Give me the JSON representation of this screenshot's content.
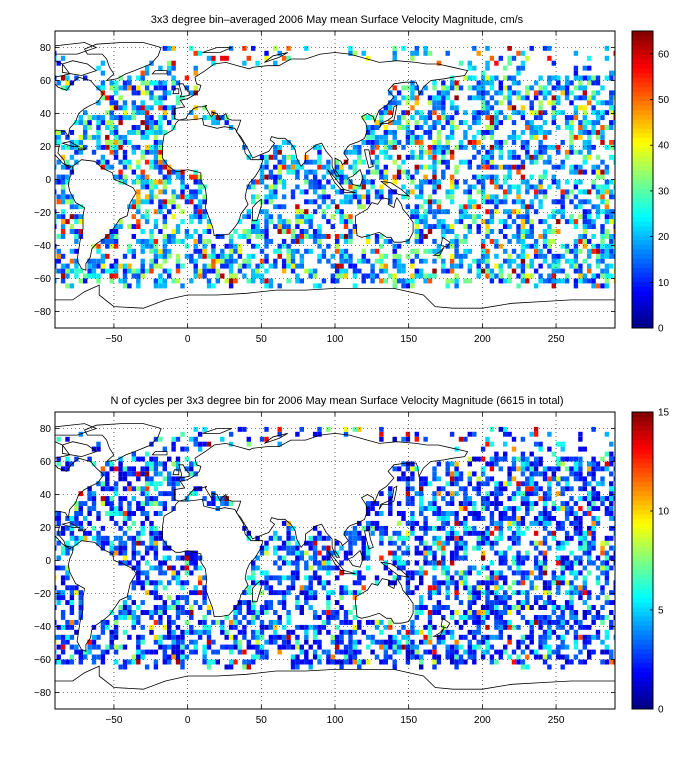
{
  "chart_data": [
    {
      "type": "heatmap",
      "title": "3x3 degree bin–averaged 2006 May mean Surface Velocity Magnitude, cm/s",
      "xlabel": "",
      "ylabel": "",
      "xlim": [
        -90,
        290
      ],
      "ylim": [
        -90,
        90
      ],
      "x_ticks": [
        -50,
        0,
        50,
        100,
        150,
        200,
        250
      ],
      "y_ticks": [
        80,
        60,
        40,
        20,
        0,
        -20,
        -40,
        -60,
        -80
      ],
      "grid": true,
      "bin_size_deg": 3,
      "colormap": "jet",
      "colorbar": {
        "range": [
          0,
          65
        ],
        "ticks": [
          0,
          10,
          20,
          30,
          40,
          50,
          60
        ],
        "placement": "right"
      },
      "typical_value": 18,
      "seed": 11
    },
    {
      "type": "heatmap",
      "title": "N of cycles per 3x3 degree bin for 2006 May mean Surface Velocity Magnitude (6615 in total)",
      "xlabel": "",
      "ylabel": "",
      "xlim": [
        -90,
        290
      ],
      "ylim": [
        -90,
        90
      ],
      "x_ticks": [
        -50,
        0,
        50,
        100,
        150,
        200,
        250
      ],
      "y_ticks": [
        80,
        60,
        40,
        20,
        0,
        -20,
        -40,
        -60,
        -80
      ],
      "grid": true,
      "bin_size_deg": 3,
      "colormap": "jet",
      "colorbar": {
        "range": [
          0,
          15
        ],
        "ticks": [
          0,
          5,
          10,
          15
        ],
        "placement": "right"
      },
      "total_cycles": 6615,
      "typical_value": 3,
      "seed": 29
    }
  ]
}
